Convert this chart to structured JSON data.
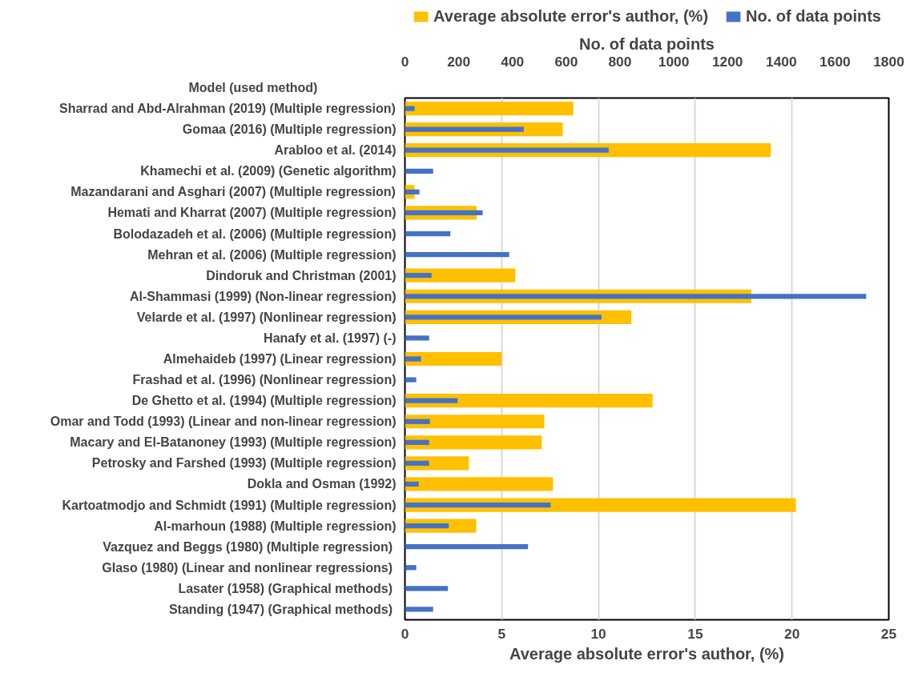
{
  "chart_data": {
    "type": "bar",
    "orientation": "horizontal",
    "xlabel": "Average absolute error's author, (%)",
    "x2label": "No. of data points",
    "ylabel": "Model (used method)",
    "categories": [
      "Sharrad and Abd-Alrahman (2019) (Multiple regression)",
      "Gomaa (2016) (Multiple regression)",
      "Arabloo et al. (2014)",
      "Khamechi et al. (2009) (Genetic algorithm)",
      "Mazandarani and Asghari (2007) (Multiple regression)",
      "Hemati and Kharrat (2007) (Multiple regression)",
      "Bolodazadeh et al. (2006) (Multiple regression)",
      "Mehran et al. (2006) (Multiple regression)",
      "Dindoruk and Christman (2001)",
      "Al-Shammasi (1999) (Non-linear regression)",
      "Velarde et al. (1997) (Nonlinear regression)",
      "Hanafy et al. (1997) (-)",
      "Almehaideb (1997) (Linear regression)",
      "Frashad et al. (1996) (Nonlinear regression)",
      "De Ghetto et al. (1994) (Multiple regression)",
      "Omar and Todd (1993) (Linear and non-linear regression)",
      "Macary and El-Batanoney (1993) (Multiple regression)",
      "Petrosky and Farshed (1993) (Multiple regression)",
      "Dokla and Osman (1992)",
      "Kartoatmodjo and Schmidt (1991) (Multiple regression)",
      "Al-marhoun (1988) (Multiple regression)",
      "Vazquez and Beggs (1980)  (Multiple regression)",
      "Glaso (1980)  (Linear and nonlinear regressions)",
      "Lasater (1958) (Graphical  methods)",
      "Standing (1947) (Graphical  methods)"
    ],
    "series": [
      {
        "name": "Average absolute error's author, (%)",
        "color": "#ffc000",
        "values": [
          8.7,
          8.15,
          18.9,
          null,
          0.5,
          3.7,
          null,
          null,
          5.7,
          17.9,
          11.7,
          null,
          5.0,
          null,
          12.8,
          7.2,
          7.07,
          3.3,
          7.65,
          20.2,
          3.68,
          null,
          null,
          null,
          null
        ]
      },
      {
        "name": "No. of data points",
        "color": "#4472c4",
        "axis": "x2",
        "values": [
          36,
          442,
          758,
          105,
          54,
          289,
          169,
          388,
          99,
          1716,
          731,
          90,
          60,
          42,
          196,
          93,
          90,
          90,
          51,
          542,
          163,
          458,
          42,
          160,
          105
        ]
      }
    ],
    "xlim": [
      0,
      25
    ],
    "xticks": [
      0,
      5,
      10,
      15,
      20,
      25
    ],
    "x2lim": [
      0,
      1800
    ],
    "x2ticks": [
      0,
      200,
      400,
      600,
      800,
      1000,
      1200,
      1400,
      1600,
      1800
    ],
    "grid": "x",
    "legend": "top"
  }
}
